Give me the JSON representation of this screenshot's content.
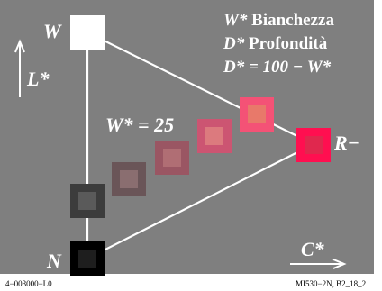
{
  "colors": {
    "background": "#7f7f7f",
    "white_patch": "#ffffff",
    "black_patch": "#000000",
    "reference_red": "#ff0f50",
    "labels": "#ffffff"
  },
  "labels": {
    "W": "W",
    "N": "N",
    "L_axis": "L*",
    "R_minus": "R−",
    "C_axis": "C*",
    "w25": "W* = 25"
  },
  "legend": {
    "line1_symbol": "W*",
    "line1_text": "Bianchezza",
    "line2_symbol": "D*",
    "line2_text": "Profondità",
    "line3": "D* = 100 − W*"
  },
  "footer": {
    "left": "4−003000−L0",
    "right": "MI530−2N, B2_18_2"
  },
  "patches": [
    {
      "name": "white-patch",
      "outer": "#ffffff",
      "inner": "#ffffff"
    },
    {
      "name": "black-patch",
      "outer": "#000000",
      "inner": "#1e1e1e"
    },
    {
      "name": "gray-patch",
      "outer": "#3c3c3c",
      "inner": "#5a5a5a"
    },
    {
      "name": "mauve-patch-1",
      "outer": "#6a5558",
      "inner": "#8a6e70"
    },
    {
      "name": "mauve-patch-2",
      "outer": "#9a5663",
      "inner": "#b06e74"
    },
    {
      "name": "pink-patch-3",
      "outer": "#cc5572",
      "inner": "#dc7a7e"
    },
    {
      "name": "pink-patch-4",
      "outer": "#f45276",
      "inner": "#e8796a"
    },
    {
      "name": "red-patch",
      "outer": "#ff0f50",
      "inner": "#e0284e"
    }
  ]
}
